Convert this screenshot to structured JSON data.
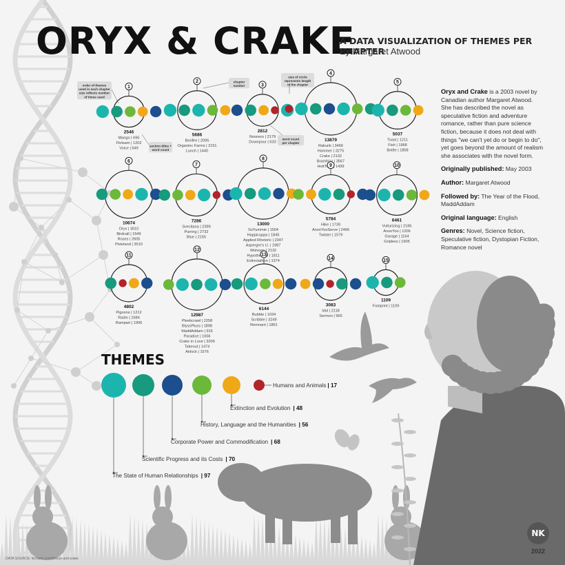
{
  "header": {
    "title": "ORYX & CRAKE",
    "subtitle": "A DATA VISUALIZATION OF THEMES PER CHAPTER",
    "author": "By Margaret Atwood"
  },
  "info": {
    "intro_bold": "Oryx and Crake",
    "intro_text": " is a 2003 novel by Canadian author Margaret Atwood. She has described the novel as speculative fiction and adventure romance, rather than pure science fiction, because it does not deal with things \"we can't yet do or begin to do\", yet goes beyond the amount of realism she associates with the novel form.",
    "published_label": "Originally published:",
    "published_value": " May 2003",
    "author_label": "Author:",
    "author_value": " Margaret Atwood",
    "followed_label": "Followed by:",
    "followed_value": " The Year of the Flood, MaddAddam",
    "language_label": "Original language:",
    "language_value": " English",
    "genres_label": "Genres:",
    "genres_value": " Novel, Science fiction, Speculative fiction, Dystopian Fiction, Romance novel"
  },
  "annotations": {
    "order": [
      "order of themes",
      "used in each chapter",
      "size reflects number",
      "of times used"
    ],
    "section": [
      "section titles +",
      "word count"
    ],
    "chapter": [
      "chapter",
      "number"
    ],
    "size": [
      "size of circle",
      "represents length",
      "of the chapter"
    ],
    "wordcount": [
      "word count",
      "per chapter"
    ]
  },
  "themes_title": "THEMES",
  "source": "DATA SOURCE: litcharts.com/lit/oryx-and-crake",
  "logo": "NK",
  "year": "2022",
  "colors": {
    "relationships": "#1cb5ae",
    "science": "#179a7d",
    "corporate": "#1d4e8d",
    "history": "#6cb83a",
    "extinction": "#f0a818",
    "humans": "#b0242a"
  },
  "chart_data": {
    "type": "bubble",
    "themes": [
      {
        "key": "relationships",
        "name": "The State of Human Relationships",
        "count": 97
      },
      {
        "key": "science",
        "name": "Scientific Progress and its Costs",
        "count": 70
      },
      {
        "key": "corporate",
        "name": "Corporate Power and Commodification",
        "count": 68
      },
      {
        "key": "history",
        "name": "History, Language and the Humanities",
        "count": 56
      },
      {
        "key": "extinction",
        "name": "Extinction and Evolution",
        "count": 48
      },
      {
        "key": "humans",
        "name": "Humans and Animals",
        "count": 17
      }
    ],
    "chapters": [
      {
        "number": "1",
        "words": 2546,
        "dots": [
          "relationships",
          "science",
          "history",
          "extinction",
          "corporate"
        ],
        "sections": [
          "Mango | 695",
          "Flotsam | 1202",
          "Voice | 649"
        ]
      },
      {
        "number": "2",
        "words": 5686,
        "dots": [
          "relationships",
          "science",
          "relationships",
          "history",
          "extinction"
        ],
        "sections": [
          "Bonfire | 2095",
          "Organinc Farms | 2151",
          "Lunch | 1440"
        ]
      },
      {
        "number": "3",
        "words": 2812,
        "dots": [
          "corporate",
          "science",
          "extinction",
          "humans",
          "relationships"
        ],
        "sections": [
          "Nooners | 2179",
          "Downpour | 633"
        ]
      },
      {
        "number": "4",
        "words": 13879,
        "dots": [
          "humans",
          "relationships",
          "science",
          "corporate",
          "relationships",
          "history",
          "science"
        ],
        "sections": [
          "Rakunk | 3466",
          "Hammer | 3275",
          "Crake | 2132",
          "Brainfrizz | 3567",
          "HottTotts | 1439"
        ]
      },
      {
        "number": "5",
        "words": 5037,
        "dots": [
          "relationships",
          "science",
          "history",
          "extinction"
        ],
        "sections": [
          "Toast | 1211",
          "Fish | 1968",
          "Bottle | 1858"
        ]
      },
      {
        "number": "6",
        "words": 10674,
        "dots": [
          "science",
          "history",
          "extinction",
          "relationships",
          "corporate"
        ],
        "sections": [
          "Oryx | 3010",
          "Birdcall | 1549",
          "Roses | 2605",
          "Pixieland | 3510"
        ]
      },
      {
        "number": "7",
        "words": 7286,
        "dots": [
          "science",
          "history",
          "extinction",
          "relationships",
          "humans",
          "corporate"
        ],
        "sections": [
          "Svecitana | 2399",
          "Purring | 2732",
          "Blue | 2155"
        ]
      },
      {
        "number": "8",
        "words": 13000,
        "dots": [
          "relationships",
          "science",
          "relationships",
          "corporate",
          "extinction"
        ],
        "sections": [
          "SoYummie | 1504",
          "Happicuppa | 1845",
          "Applied Rhetoric | 2347",
          "Asperger's U. | 1987",
          "Wolvogs | 2132",
          "Hypothetical | 1811",
          "Extinctathon | 1374"
        ]
      },
      {
        "number": "9",
        "words": 5784,
        "dots": [
          "history",
          "extinction",
          "relationships",
          "science",
          "humans",
          "corporate"
        ],
        "sections": [
          "Hike | 1739",
          "AnooYooServe | 2466",
          "Twister | 1579"
        ]
      },
      {
        "number": "10",
        "words": 6461,
        "dots": [
          "corporate",
          "relationships",
          "science",
          "history",
          "extinction"
        ],
        "sections": [
          "Vulturizing | 2186",
          "AnooYoo | 1206",
          "Garage | 1164",
          "Gripless | 1905"
        ]
      },
      {
        "number": "11",
        "words": 4802,
        "dots": [
          "science",
          "humans",
          "extinction",
          "corporate"
        ],
        "sections": [
          "Pigoons | 1212",
          "Radio | 1684",
          "Rampart | 1906"
        ]
      },
      {
        "number": "12",
        "words": 12987,
        "dots": [
          "history",
          "relationships",
          "science",
          "relationships",
          "corporate"
        ],
        "sections": [
          "Pleebcrawl | 2258",
          "BlyssPluss | 1898",
          "MaddAddam | 916",
          "Paradice | 1656",
          "Crake in Love | 3209",
          "Takeout | 1474",
          "Airlock | 1576"
        ]
      },
      {
        "number": "13",
        "words": 6144,
        "dots": [
          "science",
          "relationships",
          "history",
          "extinction",
          "corporate"
        ],
        "sections": [
          "Bubble | 1034",
          "Scribble | 3249",
          "Remnant | 1861"
        ]
      },
      {
        "number": "14",
        "words": 3083,
        "dots": [
          "extinction",
          "corporate",
          "humans",
          "science",
          "corporate"
        ],
        "sections": [
          "Idol | 2118",
          "Sermon | 965"
        ]
      },
      {
        "number": "15",
        "words": 1109,
        "dots": [
          "relationships",
          "science",
          "history"
        ],
        "sections": [
          "Footprint | 1109"
        ]
      }
    ]
  }
}
